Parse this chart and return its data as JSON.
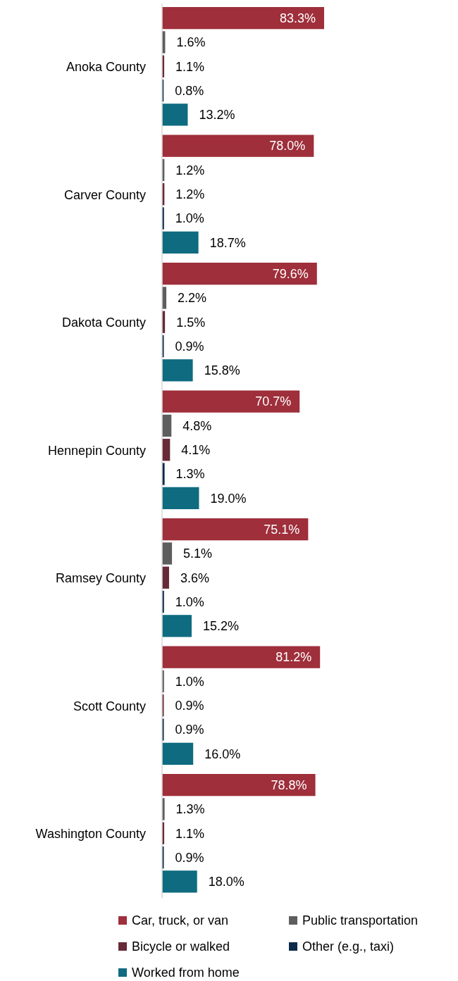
{
  "chart_data": {
    "type": "bar",
    "orientation": "horizontal",
    "categories": [
      "Anoka County",
      "Carver County",
      "Dakota County",
      "Hennepin County",
      "Ramsey County",
      "Scott County",
      "Washington County"
    ],
    "series": [
      {
        "name": "Car, truck, or van",
        "color": "#9e2f3b",
        "values": [
          83.3,
          78.0,
          79.6,
          70.7,
          75.1,
          81.2,
          78.8
        ],
        "value_labels": [
          "83.3%",
          "78.0%",
          "79.6%",
          "70.7%",
          "75.1%",
          "81.2%",
          "78.8%"
        ]
      },
      {
        "name": "Public transportation",
        "color": "#5e5e5e",
        "values": [
          1.6,
          1.2,
          2.2,
          4.8,
          5.1,
          1.0,
          1.3
        ],
        "value_labels": [
          "1.6%",
          "1.2%",
          "2.2%",
          "4.8%",
          "5.1%",
          "1.0%",
          "1.3%"
        ]
      },
      {
        "name": "Bicycle or walked",
        "color": "#672a36",
        "values": [
          1.1,
          1.2,
          1.5,
          4.1,
          3.6,
          0.9,
          1.1
        ],
        "value_labels": [
          "1.1%",
          "1.2%",
          "1.5%",
          "4.1%",
          "3.6%",
          "0.9%",
          "1.1%"
        ]
      },
      {
        "name": "Other (e.g., taxi)",
        "color": "#0c2a4a",
        "values": [
          0.8,
          1.0,
          0.9,
          1.3,
          1.0,
          0.9,
          0.9
        ],
        "value_labels": [
          "0.8%",
          "1.0%",
          "0.9%",
          "1.3%",
          "1.0%",
          "0.9%",
          "0.9%"
        ]
      },
      {
        "name": "Worked from home",
        "color": "#0e6b80",
        "values": [
          13.2,
          18.7,
          15.8,
          19.0,
          15.2,
          16.0,
          18.0
        ],
        "value_labels": [
          "13.2%",
          "18.7%",
          "15.8%",
          "19.0%",
          "15.2%",
          "16.0%",
          "18.0%"
        ]
      }
    ],
    "legend": "bottom"
  }
}
